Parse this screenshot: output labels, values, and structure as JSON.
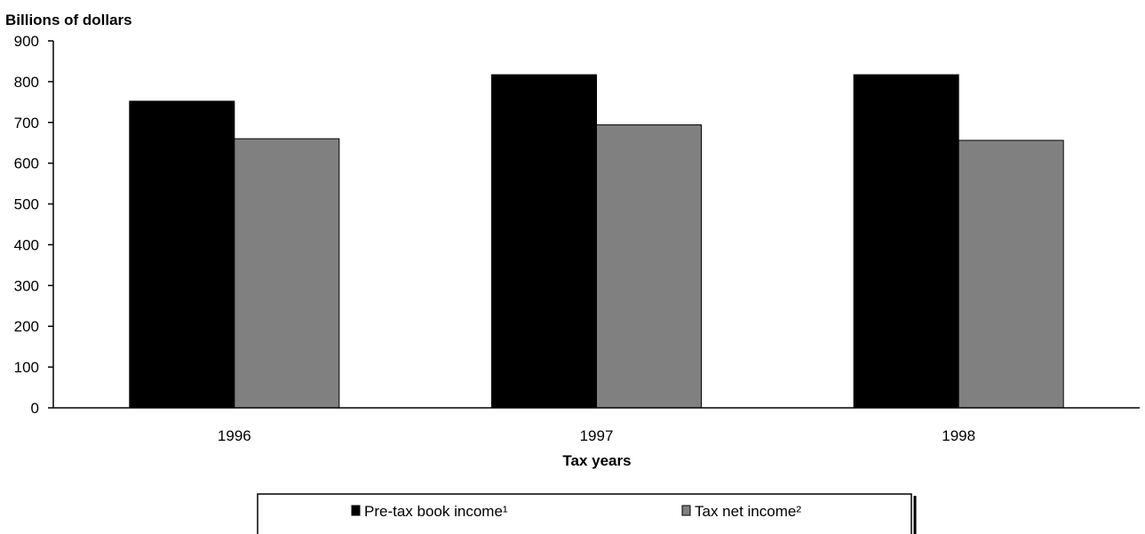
{
  "chart_data": {
    "type": "bar",
    "ylabel": "Billions of dollars",
    "xlabel": "Tax years",
    "categories": [
      "1996",
      "1997",
      "1998"
    ],
    "ylim": [
      0,
      900
    ],
    "yticks": [
      0,
      100,
      200,
      300,
      400,
      500,
      600,
      700,
      800,
      900
    ],
    "grid": false,
    "legend_position": "bottom",
    "series": [
      {
        "name": "Pre-tax book income¹",
        "values": [
          752,
          817,
          817
        ],
        "color": "#000000"
      },
      {
        "name": "Tax net income²",
        "values": [
          660,
          694,
          656
        ],
        "color": "#808080"
      }
    ]
  }
}
